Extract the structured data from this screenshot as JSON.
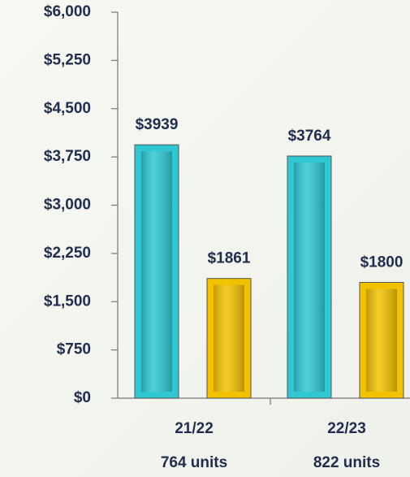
{
  "chart_data": {
    "type": "bar",
    "categories": [
      "21/22",
      "22/23"
    ],
    "category_sublabels": [
      "764 units",
      "822 units"
    ],
    "series": [
      {
        "color": "#2fc8d2",
        "values": [
          3939,
          3764
        ],
        "value_labels": [
          "$3939",
          "$3764"
        ]
      },
      {
        "color": "#f2c200",
        "values": [
          1861,
          1800
        ],
        "value_labels": [
          "$1861",
          "$1800"
        ]
      }
    ],
    "ylim": [
      0,
      6000
    ],
    "yticks": [
      {
        "value": 0,
        "label": "$0"
      },
      {
        "value": 750,
        "label": "$750"
      },
      {
        "value": 1500,
        "label": "$1,500"
      },
      {
        "value": 2250,
        "label": "$2,250"
      },
      {
        "value": 3000,
        "label": "$3,000"
      },
      {
        "value": 3750,
        "label": "$3,750"
      },
      {
        "value": 4500,
        "label": "$4,500"
      },
      {
        "value": 5250,
        "label": "$5,250"
      },
      {
        "value": 6000,
        "label": "$6,000"
      }
    ]
  }
}
